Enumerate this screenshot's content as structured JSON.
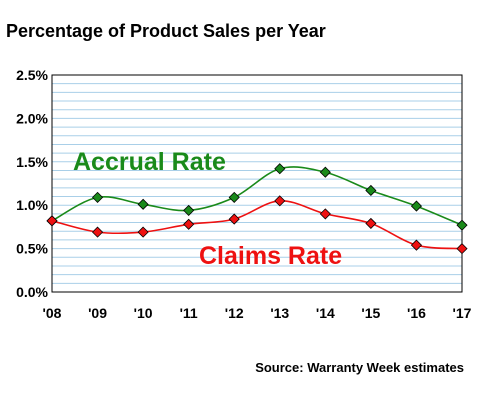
{
  "chart_data": {
    "type": "line",
    "title": "Percentage of Product Sales per Year",
    "categories": [
      "'08",
      "'09",
      "'10",
      "'11",
      "'12",
      "'13",
      "'14",
      "'15",
      "'16",
      "'17"
    ],
    "y_ticks": [
      "0.0%",
      "0.5%",
      "1.0%",
      "1.5%",
      "2.0%",
      "2.5%"
    ],
    "ylim": [
      0,
      2.5
    ],
    "y_unit": "%",
    "grid": true,
    "series": [
      {
        "name": "Accrual Rate",
        "color": "#1a8a1a",
        "values": [
          0.82,
          1.09,
          1.01,
          0.94,
          1.09,
          1.42,
          1.38,
          1.17,
          0.99,
          0.77
        ]
      },
      {
        "name": "Claims Rate",
        "color": "#ee1111",
        "values": [
          0.82,
          0.69,
          0.69,
          0.78,
          0.84,
          1.05,
          0.9,
          0.79,
          0.54,
          0.5
        ]
      }
    ],
    "source": "Source: Warranty Week estimates"
  }
}
